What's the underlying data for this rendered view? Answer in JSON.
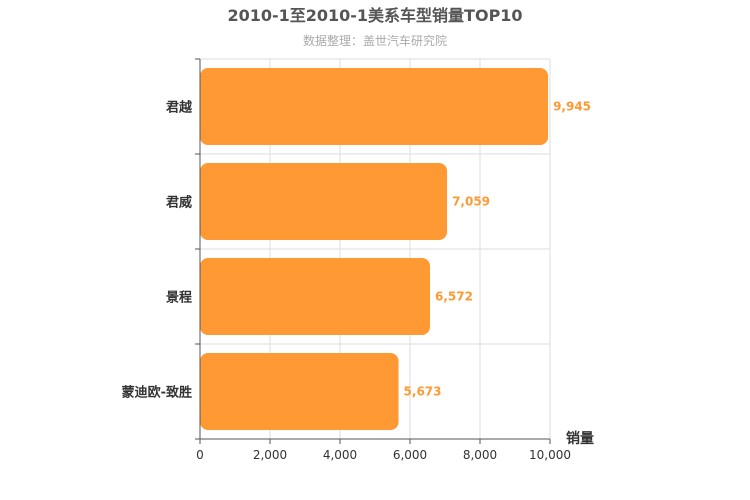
{
  "chart_data": {
    "type": "bar",
    "orientation": "horizontal",
    "title": "2010-1至2010-1美系车型销量TOP10",
    "subtitle": "数据整理：盖世汽车研究院",
    "categories": [
      "君越",
      "君威",
      "景程",
      "蒙迪欧-致胜"
    ],
    "values": [
      9945,
      7059,
      6572,
      5673
    ],
    "value_labels": [
      "9,945",
      "7,059",
      "6,572",
      "5,673"
    ],
    "xlabel": "销量",
    "ylabel": "",
    "xlim": [
      0,
      10000
    ],
    "x_ticks": [
      0,
      2000,
      4000,
      6000,
      8000,
      10000
    ],
    "x_tick_labels": [
      "0",
      "2,000",
      "4,000",
      "6,000",
      "8,000",
      "10,000"
    ],
    "grid": true,
    "bar_color": "#ff9933",
    "value_label_color": "#ff9933"
  }
}
